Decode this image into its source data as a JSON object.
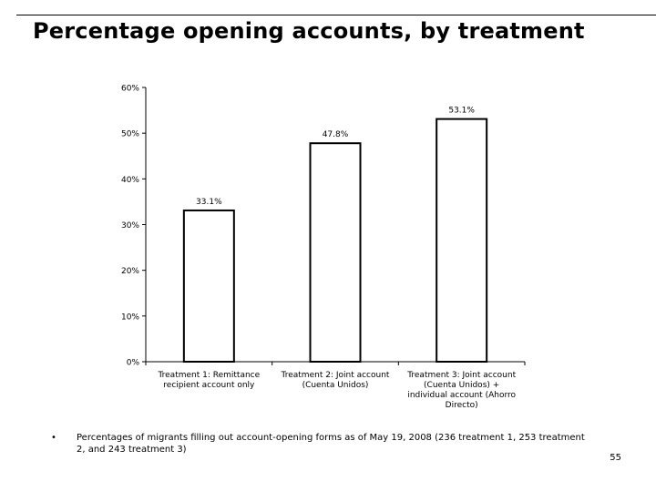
{
  "slide": {
    "title": "Percentage opening accounts, by treatment",
    "bullet_symbol": "•",
    "note": "Percentages of migrants filling out account-opening forms as of May 19, 2008 (236 treatment 1, 253 treatment 2, and 243 treatment 3)",
    "page_number": "55"
  },
  "chart_data": {
    "type": "bar",
    "title": "",
    "xlabel": "",
    "ylabel": "",
    "ylim": [
      0,
      60
    ],
    "y_ticks": [
      0,
      10,
      20,
      30,
      40,
      50,
      60
    ],
    "y_tick_labels": [
      "0%",
      "10%",
      "20%",
      "30%",
      "40%",
      "50%",
      "60%"
    ],
    "categories": [
      [
        "Treatment 1: Remittance",
        "recipient account only"
      ],
      [
        "Treatment 2: Joint account",
        "(Cuenta Unidos)"
      ],
      [
        "Treatment 3: Joint account",
        "(Cuenta Unidos) +",
        "individual account (Ahorro",
        "Directo)"
      ]
    ],
    "values": [
      33.1,
      47.8,
      53.1
    ],
    "data_labels": [
      "33.1%",
      "47.8%",
      "53.1%"
    ],
    "grid": false,
    "legend": "none",
    "bar_fill": "#ffffff",
    "bar_stroke": "#000000"
  }
}
